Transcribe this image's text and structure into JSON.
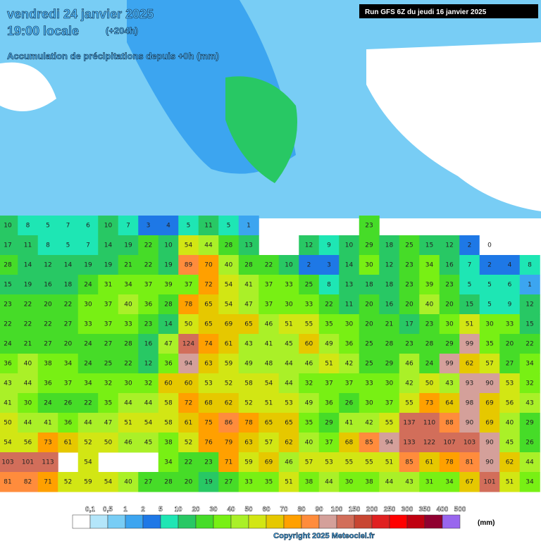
{
  "header": {
    "date": "vendredi 24 janvier 2025",
    "time": "19:00 locale",
    "lead": "(+204h)",
    "subtitle": "Accumulation de précipitations depuis +0h (mm)",
    "run": "Run GFS 6Z du jeudi 16 janvier 2025"
  },
  "grid": {
    "rows": [
      [
        10,
        8,
        5,
        7,
        6,
        10,
        7,
        3,
        4,
        5,
        11,
        5,
        1,
        null,
        null,
        null,
        null,
        null,
        23,
        null,
        null,
        null,
        null,
        null,
        null,
        null,
        null
      ],
      [
        17,
        11,
        8,
        5,
        7,
        14,
        19,
        22,
        10,
        54,
        44,
        28,
        13,
        null,
        null,
        12,
        9,
        10,
        29,
        18,
        25,
        15,
        12,
        2,
        0,
        null,
        null
      ],
      [
        28,
        14,
        12,
        14,
        19,
        19,
        21,
        22,
        19,
        89,
        70,
        40,
        28,
        22,
        10,
        2,
        3,
        14,
        30,
        12,
        23,
        34,
        16,
        7,
        2,
        4,
        8
      ],
      [
        15,
        19,
        16,
        18,
        24,
        31,
        34,
        37,
        39,
        37,
        72,
        54,
        41,
        37,
        33,
        25,
        8,
        13,
        18,
        18,
        23,
        39,
        23,
        5,
        5,
        6,
        1
      ],
      [
        23,
        22,
        20,
        22,
        30,
        37,
        40,
        36,
        28,
        78,
        65,
        54,
        47,
        37,
        30,
        33,
        22,
        11,
        20,
        16,
        20,
        40,
        20,
        15,
        5,
        9,
        12
      ],
      [
        22,
        22,
        22,
        27,
        33,
        37,
        33,
        23,
        14,
        50,
        65,
        69,
        65,
        46,
        51,
        55,
        35,
        30,
        20,
        21,
        17,
        23,
        30,
        51,
        30,
        33,
        15
      ],
      [
        24,
        21,
        27,
        20,
        24,
        27,
        28,
        16,
        47,
        124,
        74,
        61,
        43,
        41,
        45,
        60,
        49,
        36,
        25,
        28,
        23,
        28,
        29,
        99,
        35,
        20,
        22
      ],
      [
        36,
        40,
        38,
        34,
        24,
        25,
        22,
        12,
        36,
        94,
        63,
        59,
        49,
        48,
        44,
        46,
        51,
        42,
        25,
        29,
        46,
        24,
        99,
        62,
        57,
        27,
        34
      ],
      [
        43,
        44,
        36,
        37,
        34,
        32,
        30,
        32,
        60,
        60,
        53,
        52,
        58,
        54,
        44,
        32,
        37,
        37,
        33,
        30,
        42,
        50,
        43,
        93,
        90,
        53,
        32
      ],
      [
        41,
        30,
        24,
        26,
        22,
        35,
        44,
        44,
        58,
        72,
        68,
        62,
        52,
        51,
        53,
        49,
        36,
        26,
        30,
        37,
        55,
        73,
        64,
        98,
        69,
        56,
        43
      ],
      [
        50,
        44,
        41,
        36,
        44,
        47,
        51,
        54,
        58,
        61,
        75,
        86,
        78,
        65,
        65,
        35,
        29,
        41,
        42,
        55,
        137,
        110,
        88,
        90,
        69,
        40,
        29
      ],
      [
        54,
        56,
        73,
        61,
        52,
        50,
        46,
        45,
        38,
        52,
        76,
        79,
        63,
        57,
        62,
        40,
        37,
        68,
        85,
        94,
        133,
        122,
        107,
        103,
        90,
        45,
        26
      ],
      [
        103,
        101,
        113,
        null,
        54,
        null,
        null,
        null,
        34,
        22,
        23,
        71,
        59,
        69,
        46,
        57,
        53,
        55,
        55,
        51,
        85,
        61,
        78,
        81,
        90,
        62,
        44
      ],
      [
        81,
        82,
        71,
        52,
        59,
        54,
        40,
        27,
        28,
        20,
        19,
        27,
        33,
        35,
        51,
        38,
        44,
        30,
        38,
        44,
        43,
        31,
        34,
        67,
        101,
        51,
        34
      ]
    ]
  },
  "legend": {
    "unit": "(mm)",
    "ticks": [
      {
        "value": 0.1,
        "label": "0,1"
      },
      {
        "value": 0.5,
        "label": "0,5"
      },
      1,
      2,
      5,
      10,
      20,
      30,
      40,
      50,
      60,
      70,
      80,
      90,
      100,
      150,
      200,
      250,
      300,
      350,
      400,
      500
    ],
    "colors": [
      "#ffffff",
      "#b4e6fa",
      "#78cdf5",
      "#3ca5f0",
      "#1e78e6",
      "#1ee6b4",
      "#28c864",
      "#46dc28",
      "#78f014",
      "#aaf028",
      "#d2e614",
      "#e6c800",
      "#ffa000",
      "#ff8c3c",
      "#d4a09a",
      "#d26e5a",
      "#c84632",
      "#e02020",
      "#ff0000",
      "#c00010",
      "#900030",
      "#9966ee"
    ]
  },
  "footer": {
    "copyright": "Copyright 2025 Meteociel.fr"
  }
}
